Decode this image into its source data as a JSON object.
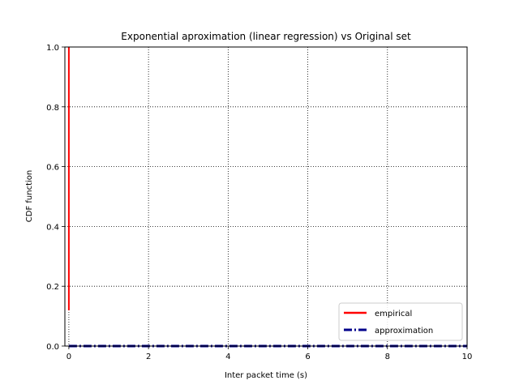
{
  "chart_data": {
    "type": "line",
    "title": "Exponential aproximation (linear regression) vs Original set",
    "xlabel": "Inter packet time (s)",
    "ylabel": "CDF function",
    "xlim": [
      -0.1,
      10
    ],
    "ylim": [
      0,
      1.0
    ],
    "xticks": [
      0,
      2,
      4,
      6,
      8,
      10
    ],
    "yticks": [
      0.0,
      0.2,
      0.4,
      0.6,
      0.8,
      1.0
    ],
    "xtick_labels": [
      "0",
      "2",
      "4",
      "6",
      "8",
      "10"
    ],
    "ytick_labels": [
      "0.0",
      "0.2",
      "0.4",
      "0.6",
      "0.8",
      "1.0"
    ],
    "grid": true,
    "legend_position": "lower-right",
    "series": [
      {
        "name": "empirical",
        "color": "#ff0000",
        "style": "solid",
        "x": [
          0.0,
          0.0
        ],
        "y": [
          0.12,
          1.0
        ]
      },
      {
        "name": "approximation",
        "color": "#00008b",
        "style": "dashdot",
        "x": [
          0,
          10
        ],
        "y": [
          0.0,
          0.0
        ]
      }
    ]
  }
}
